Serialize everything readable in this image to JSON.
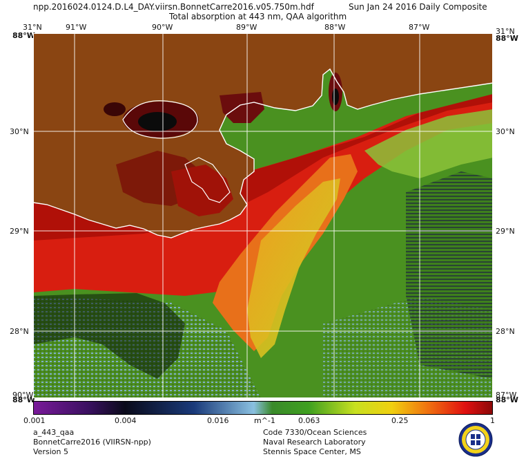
{
  "header": {
    "filename": "npp.2016024.0124.D.L4_DAY.viirsn.BonnetCarre2016.v05.750m.hdf",
    "date_label": "Sun Jan 24 2016 Daily Composite",
    "product_title": "Total absorption at 443 nm, QAA algorithm"
  },
  "map": {
    "lon_labels": [
      "91°W",
      "90°W",
      "89°W",
      "88°W",
      "87°W"
    ],
    "lat_labels": [
      "30°N",
      "29°N",
      "28°N"
    ],
    "corner_labels": {
      "top_left_lat": "31°N",
      "top_left_lon": "88°W",
      "top_right_lat": "31°N",
      "top_right_lon": "88°W",
      "bottom_left_lon": "88°W",
      "bottom_right_lon": "88°W",
      "bottom_left_lat": "90°W",
      "bottom_right_lat": "87°W"
    },
    "colors": {
      "land": "#8a4512",
      "graticule": "#ffffff",
      "coast": "#ffffff"
    }
  },
  "colorbar": {
    "tick_labels": [
      "0.001",
      "0.004",
      "0.016",
      "0.063",
      "0.25",
      "1"
    ],
    "unit": "m^-1",
    "scale": "log",
    "range": [
      0.001,
      1
    ]
  },
  "footer": {
    "left": [
      "a_443_qaa",
      "BonnetCarre2016 (VIIRSN-npp)",
      "Version 5"
    ],
    "center": [
      "Code 7330/Ocean Sciences",
      "Naval Research Laboratory",
      "Stennis Space Center, MS"
    ]
  }
}
